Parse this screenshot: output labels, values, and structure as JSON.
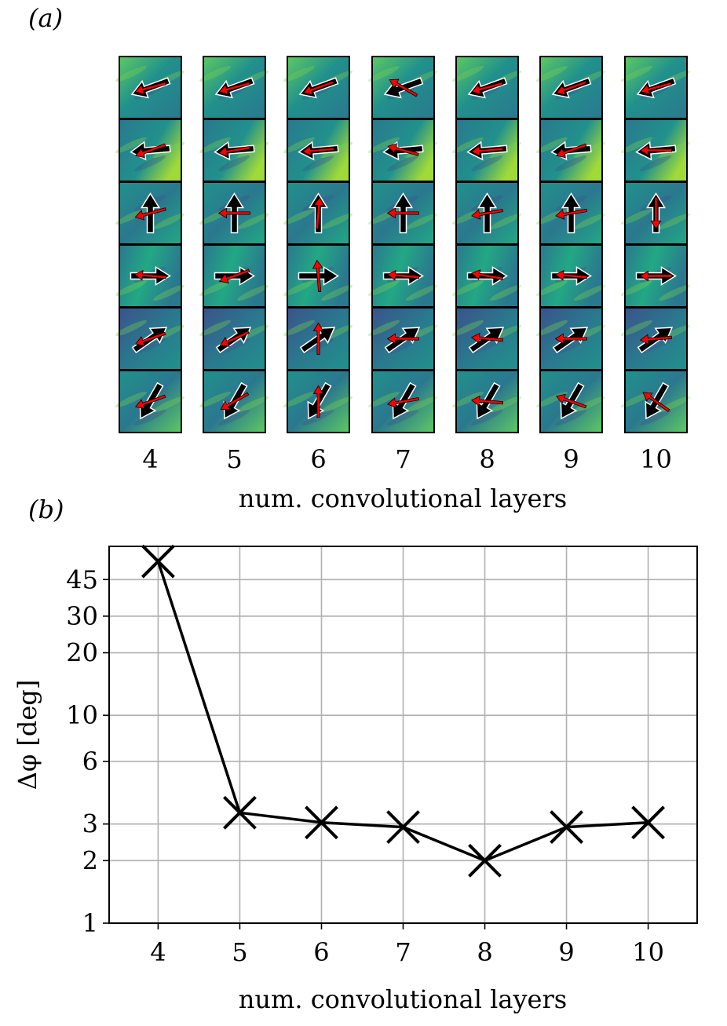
{
  "colors": {
    "tile_dark": "#2a788e",
    "tile_mid": "#21918c",
    "tile_light": "#5ec962",
    "tile_bright": "#c8e020",
    "tile_deep": "#3b528b",
    "arrow_true_fill": "#000000",
    "arrow_true_edge": "#ffffff",
    "arrow_pred": "#ff0000",
    "line": "#000000",
    "grid": "#b0b0b0"
  },
  "panel_a": {
    "label": "(a)",
    "columns": [
      "4",
      "5",
      "6",
      "7",
      "8",
      "9",
      "10"
    ],
    "xlabel": "num. convolutional layers",
    "true_angles_deg": [
      200,
      185,
      90,
      0,
      35,
      240
    ],
    "pred_angles_deg": [
      [
        195,
        200,
        195,
        175,
        200,
        200
      ],
      [
        195,
        190,
        180,
        200,
        205,
        210
      ],
      [
        200,
        185,
        85,
        95,
        90,
        90
      ],
      [
        150,
        165,
        180,
        175,
        180,
        190
      ],
      [
        195,
        185,
        190,
        170,
        175,
        175
      ],
      [
        200,
        200,
        190,
        175,
        180,
        160
      ],
      [
        195,
        180,
        270,
        180,
        185,
        145
      ]
    ]
  },
  "chart_data": {
    "type": "line",
    "label": "(b)",
    "x": [
      4,
      5,
      6,
      7,
      8,
      9,
      10
    ],
    "series": [
      {
        "name": "Δφ",
        "values": [
          55,
          3.4,
          3.05,
          2.9,
          2.0,
          2.9,
          3.05
        ],
        "marker": "x"
      }
    ],
    "xlabel": "num. convolutional layers",
    "ylabel": "Δφ [deg]",
    "yscale": "log",
    "ylim": [
      1,
      65
    ],
    "xlim": [
      3.4,
      10.6
    ],
    "xticks": [
      "4",
      "5",
      "6",
      "7",
      "8",
      "9",
      "10"
    ],
    "yticks": [
      "1",
      "2",
      "3",
      "6",
      "10",
      "20",
      "30",
      "45"
    ],
    "ytick_values": [
      1,
      2,
      3,
      6,
      10,
      20,
      30,
      45
    ],
    "grid": true
  }
}
